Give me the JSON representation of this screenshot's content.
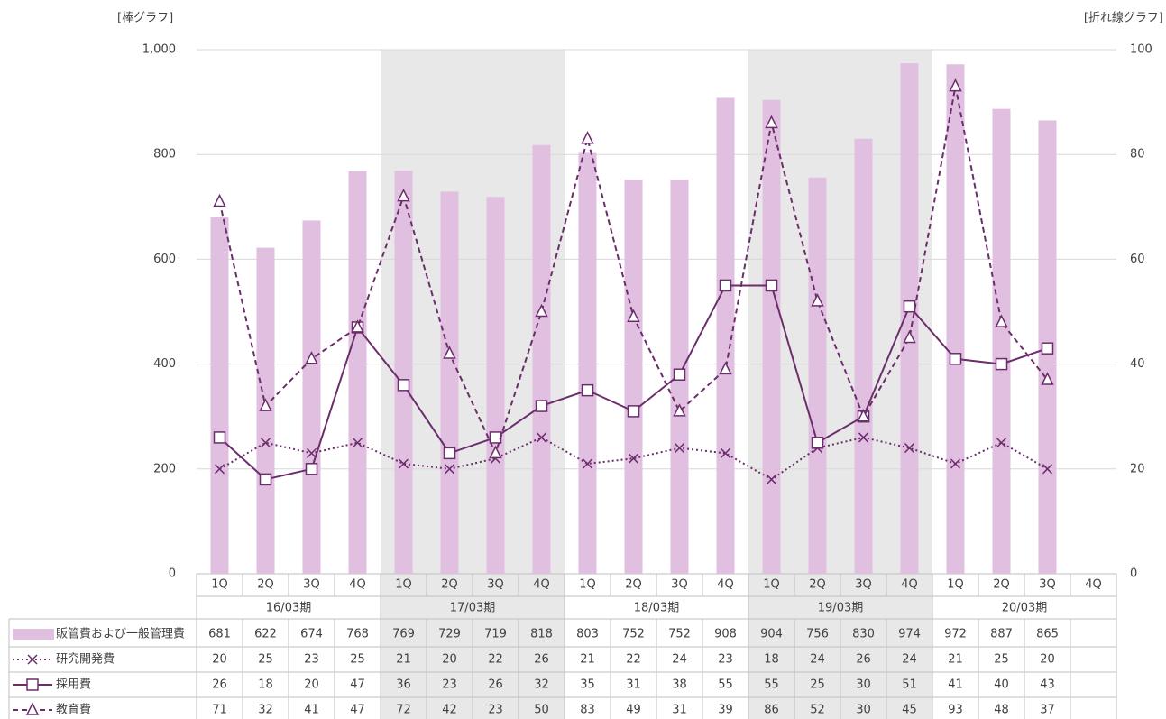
{
  "chart_data": {
    "type": "bar",
    "y_label": "[棒グラフ]",
    "y2_label": "[折れ線グラフ]",
    "categories": [
      "1Q",
      "2Q",
      "3Q",
      "4Q",
      "1Q",
      "2Q",
      "3Q",
      "4Q",
      "1Q",
      "2Q",
      "3Q",
      "4Q",
      "1Q",
      "2Q",
      "3Q",
      "4Q",
      "1Q",
      "2Q",
      "3Q",
      "4Q"
    ],
    "groups": [
      "16/03期",
      "17/03期",
      "18/03期",
      "19/03期",
      "20/03期"
    ],
    "shaded_groups": [
      1,
      3
    ],
    "ylim": [
      0,
      1000
    ],
    "yticks": [
      0,
      200,
      400,
      600,
      800,
      {
        "value": 1000,
        "label": "1,000"
      }
    ],
    "y2lim": [
      0,
      100
    ],
    "y2ticks": [
      0,
      20,
      40,
      60,
      80,
      100
    ],
    "grid": true,
    "series": [
      {
        "name": "販管費および一般管理費",
        "type": "bar",
        "color": "#e0bfe0",
        "values": [
          681,
          622,
          674,
          768,
          769,
          729,
          719,
          818,
          803,
          752,
          752,
          908,
          904,
          756,
          830,
          974,
          972,
          887,
          865,
          null
        ]
      },
      {
        "name": "研究開発費",
        "type": "line",
        "axis": "y2",
        "color": "#6b2d6b",
        "style": "dotted",
        "marker": "x",
        "values": [
          20,
          25,
          23,
          25,
          21,
          20,
          22,
          26,
          21,
          22,
          24,
          23,
          18,
          24,
          26,
          24,
          21,
          25,
          20,
          null
        ]
      },
      {
        "name": "採用費",
        "type": "line",
        "axis": "y2",
        "color": "#6b2d6b",
        "style": "solid",
        "marker": "square",
        "values": [
          26,
          18,
          20,
          47,
          36,
          23,
          26,
          32,
          35,
          31,
          38,
          55,
          55,
          25,
          30,
          51,
          41,
          40,
          43,
          null
        ]
      },
      {
        "name": "教育費",
        "type": "line",
        "axis": "y2",
        "color": "#6b2d6b",
        "style": "dashed",
        "marker": "triangle",
        "values": [
          71,
          32,
          41,
          47,
          72,
          42,
          23,
          50,
          83,
          49,
          31,
          39,
          86,
          52,
          30,
          45,
          93,
          48,
          37,
          null
        ]
      }
    ]
  }
}
